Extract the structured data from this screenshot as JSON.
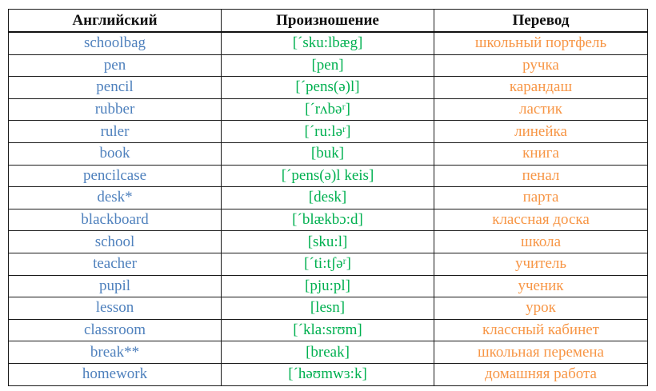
{
  "colors": {
    "english": "#4f81bd",
    "transcription": "#00b050",
    "russian": "#f79646",
    "header_text": "#111111",
    "border": "#1a1a1a"
  },
  "table": {
    "headers": [
      "Английский",
      "Произношение",
      "Перевод"
    ],
    "rows": [
      {
        "en": "schoolbag",
        "tr": "[´sku:lbæg]",
        "ru": "школьный портфель"
      },
      {
        "en": "pen",
        "tr": "[pen]",
        "ru": "ручка"
      },
      {
        "en": "pencil",
        "tr": "[´pens(ə)l]",
        "ru": "карандаш"
      },
      {
        "en": "rubber",
        "tr": "[´rʌbəʳ]",
        "ru": "ластик"
      },
      {
        "en": "ruler",
        "tr": "[´ru:ləʳ]",
        "ru": "линейка"
      },
      {
        "en": "book",
        "tr": "[buk]",
        "ru": "книга"
      },
      {
        "en": "pencilcase",
        "tr": "[´pens(ə)l keis]",
        "ru": "пенал"
      },
      {
        "en": "desk*",
        "tr": "[desk]",
        "ru": "парта"
      },
      {
        "en": "blackboard",
        "tr": "[´blækbɔ:d]",
        "ru": "классная доска"
      },
      {
        "en": "school",
        "tr": "[sku:l]",
        "ru": "школа"
      },
      {
        "en": "teacher",
        "tr": "[´ti:tʃəʳ]",
        "ru": "учитель"
      },
      {
        "en": "pupil",
        "tr": "[pju:pl]",
        "ru": "ученик"
      },
      {
        "en": "lesson",
        "tr": "[lesn]",
        "ru": "урок"
      },
      {
        "en": "classroom",
        "tr": "[´kla:srʊm]",
        "ru": "классный кабинет"
      },
      {
        "en": "break**",
        "tr": "[break]",
        "ru": "школьная перемена"
      },
      {
        "en": "homework",
        "tr": "[´həʊmwɜ:k]",
        "ru": "домашняя работа"
      }
    ]
  }
}
